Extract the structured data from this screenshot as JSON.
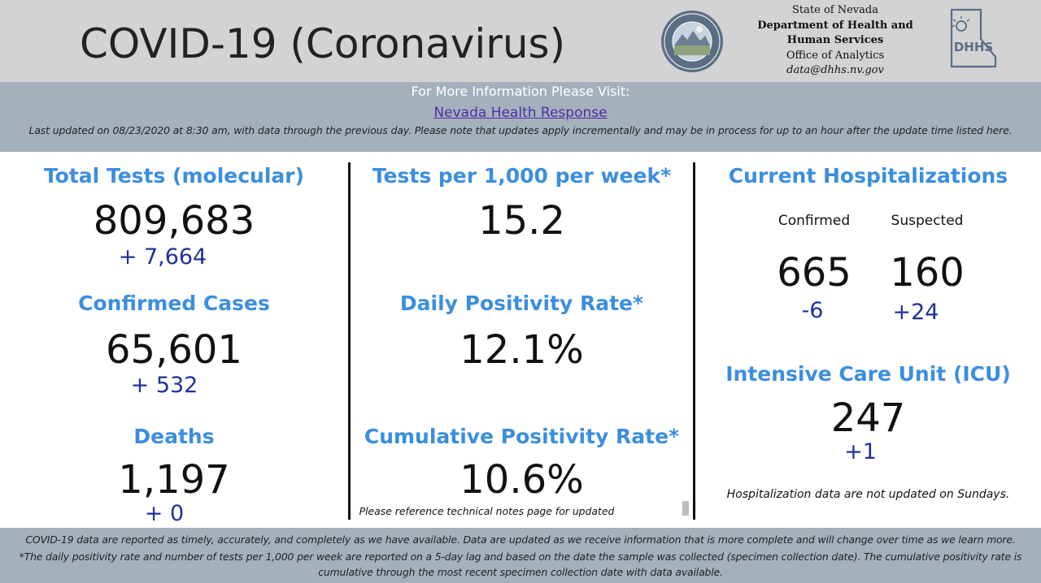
{
  "header": {
    "title": "COVID-19 (Coronavirus)",
    "agency_line1": "State of Nevada",
    "agency_line2": "Department of Health and",
    "agency_line3": "Human Services",
    "agency_line4": "Office of Analytics",
    "agency_email": "data@dhhs.nv.gov",
    "seal_icon": "nevada-state-seal-icon",
    "logo_icon": "dhhs-logo-icon",
    "logo_text": "DHHS"
  },
  "info": {
    "visit_text": "For More Information Please Visit:",
    "link_text": "Nevada Health Response",
    "last_updated": "Last updated on 08/23/2020 at 8:30 am, with data through the previous day.  Please note that updates apply incrementally and may be in process for up to an hour after the update time listed here."
  },
  "left": {
    "total_tests_title": "Total Tests (molecular)",
    "total_tests_value": "809,683",
    "total_tests_delta": "+ 7,664",
    "cases_title": "Confirmed Cases",
    "cases_value": "65,601",
    "cases_delta": "+ 532",
    "deaths_title": "Deaths",
    "deaths_value": "1,197",
    "deaths_delta": "+ 0"
  },
  "middle": {
    "tests_per_title": "Tests per 1,000 per week*",
    "tests_per_value": "15.2",
    "daily_pos_title": "Daily Positivity Rate*",
    "daily_pos_value": "12.1%",
    "cum_pos_title": "Cumulative Positivity Rate*",
    "cum_pos_value": "10.6%",
    "cum_note": "Please reference technical notes page for updated"
  },
  "right": {
    "hosp_title": "Current Hospitalizations",
    "confirmed_label": "Confirmed",
    "suspected_label": "Suspected",
    "confirmed_value": "665",
    "suspected_value": "160",
    "confirmed_delta": "-6",
    "suspected_delta": "+24",
    "icu_title": "Intensive Care Unit (ICU)",
    "icu_value": "247",
    "icu_delta": "+1",
    "hosp_note": "Hospitalization data are not updated on Sundays."
  },
  "footer": {
    "line1": "COVID-19 data are reported as timely, accurately, and completely as we have available.  Data are updated as we receive information that is more complete and will change over time as we learn more.",
    "line2": "*The daily positivity rate and number of tests per 1,000 per week are reported on a 5-day lag and based on the date the sample was collected (specimen collection date).  The cumulative positivity rate is",
    "line3": "cumulative through the most recent specimen collection date with data available."
  },
  "colors": {
    "heading_blue": "#3b8ee0",
    "delta_blue": "#23309a",
    "header_gray": "#d3d3d3",
    "bar_slate": "#a5b0bc",
    "link_purple": "#4b2fa6"
  }
}
